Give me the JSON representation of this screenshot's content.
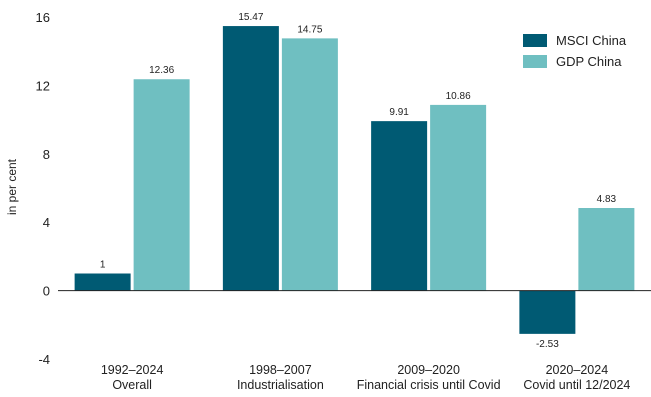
{
  "chart_data": {
    "type": "bar",
    "title": "",
    "ylabel": "in per cent",
    "xlabel": "",
    "ylim": [
      -4,
      16
    ],
    "yticks": [
      -4,
      0,
      4,
      8,
      12,
      16
    ],
    "grid": false,
    "legend_position": "top-right",
    "categories": [
      {
        "line1": "1992–2024",
        "line2": "Overall"
      },
      {
        "line1": "1998–2007",
        "line2": "Industrialisation"
      },
      {
        "line1": "2009–2020",
        "line2": "Financial crisis until Covid"
      },
      {
        "line1": "2020–2024",
        "line2": "Covid until 12/2024"
      }
    ],
    "series": [
      {
        "name": "MSCI China",
        "color": "#005a73",
        "values": [
          1,
          15.47,
          9.91,
          -2.53
        ],
        "labels": [
          "1",
          "15.47",
          "9.91",
          "-2.53"
        ]
      },
      {
        "name": "GDP China",
        "color": "#6fbfc1",
        "values": [
          12.36,
          14.75,
          10.86,
          4.83
        ],
        "labels": [
          "12.36",
          "14.75",
          "10.86",
          "4.83"
        ]
      }
    ]
  }
}
